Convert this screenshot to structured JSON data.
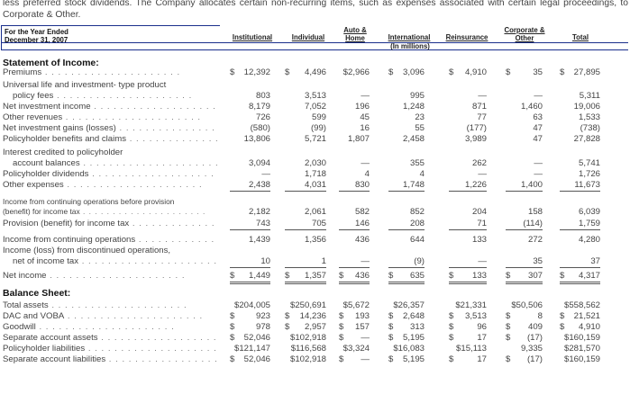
{
  "intro_text": "less preferred stock dividends. The Company allocates certain non-recurring items, such as expenses associated with certain legal proceedings, to Corporate & Other.",
  "header": {
    "period_line1": "For the Year Ended",
    "period_line2": "December 31, 2007",
    "units": "(In millions)",
    "columns": [
      "Institutional",
      "Individual",
      "Auto & Home",
      "International",
      "Reinsurance",
      "Corporate & Other",
      "Total"
    ]
  },
  "sections": {
    "income": "Statement of Income:",
    "balance": "Balance Sheet:"
  },
  "rows": {
    "premiums": {
      "label": "Premiums",
      "values": [
        "12,392",
        "4,496",
        "$2,966",
        "3,096",
        "4,910",
        "35",
        "27,895"
      ]
    },
    "ul_fees_1": {
      "label": "Universal life and investment- type product"
    },
    "ul_fees_2": {
      "label": "policy fees",
      "values": [
        "803",
        "3,513",
        "—",
        "995",
        "—",
        "—",
        "5,311"
      ]
    },
    "nii": {
      "label": "Net investment income",
      "values": [
        "8,179",
        "7,052",
        "196",
        "1,248",
        "871",
        "1,460",
        "19,006"
      ]
    },
    "other_rev": {
      "label": "Other revenues",
      "values": [
        "726",
        "599",
        "45",
        "23",
        "77",
        "63",
        "1,533"
      ]
    },
    "inv_gains": {
      "label": "Net investment gains (losses)",
      "values": [
        "(580)",
        "(99)",
        "16",
        "55",
        "(177)",
        "47",
        "(738)"
      ]
    },
    "benefits": {
      "label": "Policyholder benefits and claims",
      "values": [
        "13,806",
        "5,721",
        "1,807",
        "2,458",
        "3,989",
        "47",
        "27,828"
      ]
    },
    "interest_1": {
      "label": "Interest credited to policyholder"
    },
    "interest_2": {
      "label": "account balances",
      "values": [
        "3,094",
        "2,030",
        "—",
        "355",
        "262",
        "—",
        "5,741"
      ]
    },
    "dividends": {
      "label": "Policyholder dividends",
      "values": [
        "—",
        "1,718",
        "4",
        "4",
        "—",
        "—",
        "1,726"
      ]
    },
    "other_exp": {
      "label": "Other expenses",
      "values": [
        "2,438",
        "4,031",
        "830",
        "1,748",
        "1,226",
        "1,400",
        "11,673"
      ]
    },
    "inc_cont_1": {
      "label": "Income from continuing operations before provision"
    },
    "inc_cont_2": {
      "label": "(benefit) for income tax",
      "values": [
        "2,182",
        "2,061",
        "582",
        "852",
        "204",
        "158",
        "6,039"
      ]
    },
    "tax": {
      "label": "Provision (benefit) for income tax",
      "values": [
        "743",
        "705",
        "146",
        "208",
        "71",
        "(114)",
        "1,759"
      ]
    },
    "inc_cont": {
      "label": "Income from continuing operations",
      "values": [
        "1,439",
        "1,356",
        "436",
        "644",
        "133",
        "272",
        "4,280"
      ]
    },
    "disc_1": {
      "label": "Income (loss) from discontinued operations,"
    },
    "disc_2": {
      "label": "net of income tax",
      "values": [
        "10",
        "1",
        "—",
        "(9)",
        "—",
        "35",
        "37"
      ]
    },
    "net_income": {
      "label": "Net income",
      "values": [
        "1,449",
        "1,357",
        "436",
        "635",
        "133",
        "307",
        "4,317"
      ]
    },
    "total_assets": {
      "label": "Total assets",
      "values": [
        "$204,005",
        "$250,691",
        "$5,672",
        "$26,357",
        "$21,331",
        "$50,506",
        "$558,562"
      ]
    },
    "dac": {
      "label": "DAC and VOBA",
      "values": [
        "923",
        "14,236",
        "193",
        "2,648",
        "3,513",
        "8",
        "21,521"
      ]
    },
    "goodwill": {
      "label": "Goodwill",
      "values": [
        "978",
        "2,957",
        "157",
        "313",
        "96",
        "409",
        "4,910"
      ]
    },
    "sep_assets": {
      "label": "Separate account assets",
      "values": [
        "52,046",
        "$102,918",
        "—",
        "5,195",
        "17",
        "(17)",
        "$160,159"
      ]
    },
    "ph_liab": {
      "label": "Policyholder liabilities",
      "values": [
        "$121,147",
        "$116,568",
        "$3,324",
        "$16,083",
        "$15,113",
        "9,335",
        "$281,570"
      ]
    },
    "sep_liab": {
      "label": "Separate account liabilities",
      "values": [
        "52,046",
        "$102,918",
        "—",
        "5,195",
        "17",
        "(17)",
        "$160,159"
      ]
    }
  },
  "currency_symbol": "$"
}
